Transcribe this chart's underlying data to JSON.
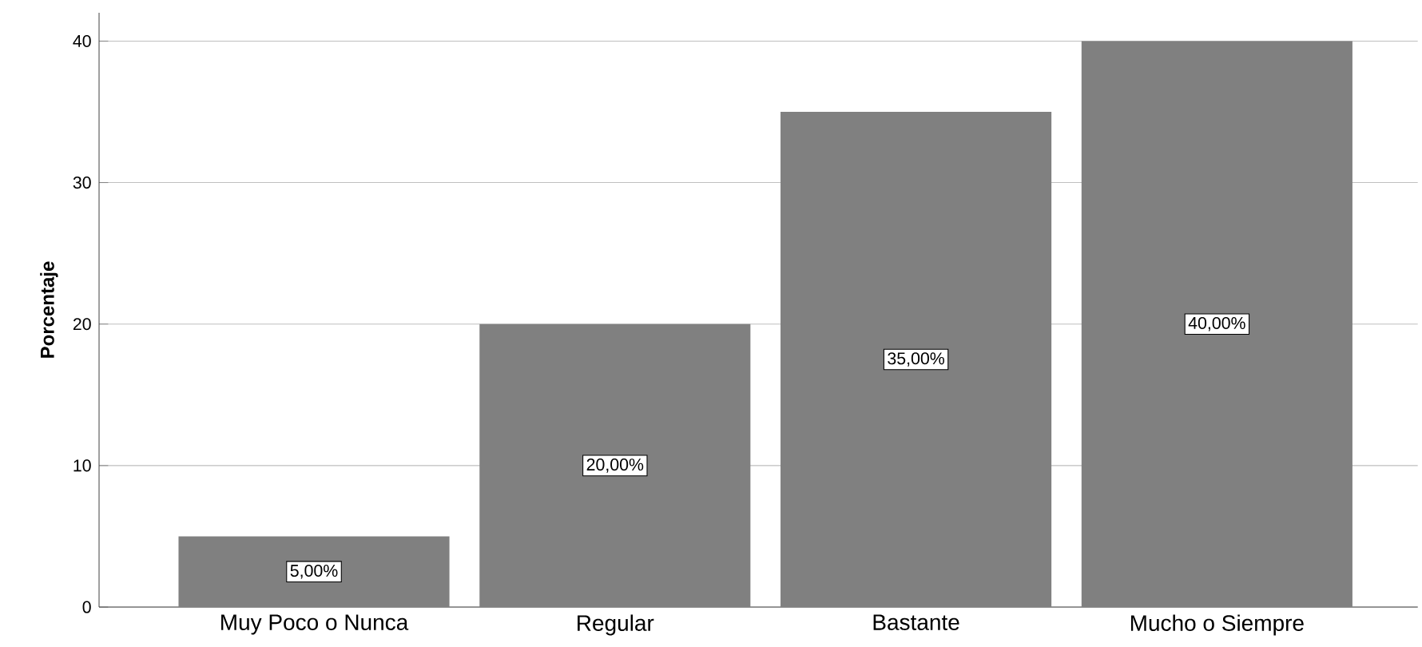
{
  "chart_data": {
    "type": "bar",
    "ylabel": "Porcentaje",
    "categories": [
      "Muy Poco o Nunca",
      "Regular",
      "Bastante",
      "Mucho o Siempre"
    ],
    "values": [
      5,
      20,
      35,
      40
    ],
    "value_labels": [
      "5,00%",
      "20,00%",
      "35,00%",
      "40,00%"
    ],
    "color": "#808080",
    "ylim": [
      0,
      42
    ],
    "yticks": [
      0,
      10,
      20,
      30,
      40
    ],
    "grid": "y"
  }
}
